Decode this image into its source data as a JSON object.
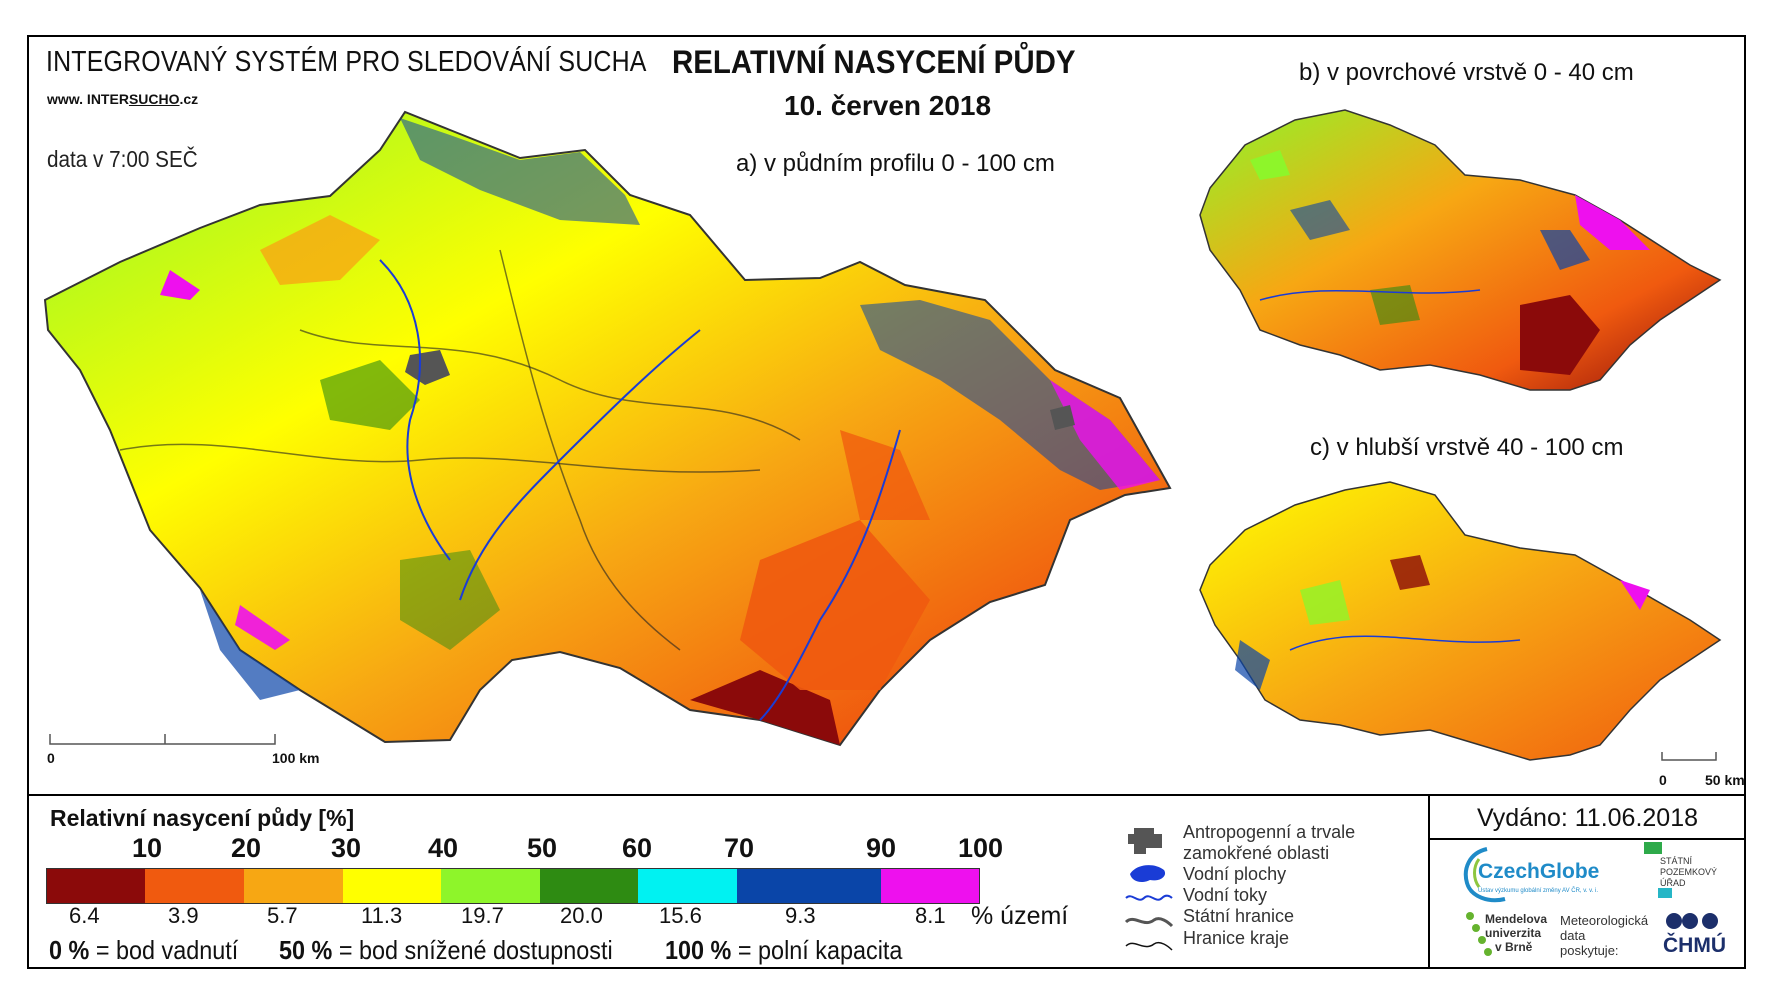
{
  "header": {
    "system_title": "INTEGROVANÝ SYSTÉM PRO SLEDOVÁNÍ SUCHA",
    "web_prefix": "www. INTER",
    "web_underlined": "SUCHO",
    "web_suffix": ".cz",
    "data_time": "data v 7:00 SEČ",
    "main_title": "RELATIVNÍ NASYCENÍ PŮDY",
    "date": "10. červen 2018"
  },
  "maps": {
    "a_label": "a) v půdním profilu 0 - 100 cm",
    "b_label": "b) v povrchové vrstvě 0 - 40 cm",
    "c_label": "c) v hlubší vrstvě 40 - 100 cm",
    "scale_main_start": "0",
    "scale_main_end": "100 km",
    "scale_small_start": "0",
    "scale_small_end": "50 km"
  },
  "legend": {
    "title": "Relativní nasycení půdy [%]",
    "ticks": [
      "10",
      "20",
      "30",
      "40",
      "50",
      "60",
      "70",
      "90",
      "100"
    ],
    "classes": [
      {
        "color": "#8b0a0a",
        "percent": "6.4"
      },
      {
        "color": "#f05a0f",
        "percent": "3.9"
      },
      {
        "color": "#f7a713",
        "percent": "5.7"
      },
      {
        "color": "#ffff00",
        "percent": "11.3"
      },
      {
        "color": "#8ef52a",
        "percent": "19.7"
      },
      {
        "color": "#2e8b12",
        "percent": "20.0"
      },
      {
        "color": "#00f2f2",
        "percent": "15.6"
      },
      {
        "color": "#0a45a8",
        "percent": "9.3"
      },
      {
        "color": "#ee10ee",
        "percent": "8.1"
      }
    ],
    "unit_label": "% území",
    "note1_bold": "0 %",
    "note1_text": "= bod vadnutí",
    "note2_bold": "50 %",
    "note2_text": "= bod snížené dostupnosti",
    "note3_bold": "100 %",
    "note3_text": "= polní kapacita"
  },
  "symbol_legend": {
    "anthropogenic_line1": "Antropogenní a trvale",
    "anthropogenic_line2": "zamokřené oblasti",
    "water_bodies": "Vodní plochy",
    "rivers": "Vodní toky",
    "state_border": "Státní hranice",
    "region_border": "Hranice kraje"
  },
  "footer": {
    "issued": "Vydáno: 11.06.2018",
    "czechglobe": "CzechGlobe",
    "czechglobe_sub": "Ústav výzkumu globální změny AV ČR, v. v. i.",
    "spu_line1": "STÁTNÍ",
    "spu_line2": "POZEMKOVÝ",
    "spu_line3": "ÚŘAD",
    "mendel_line1": "Mendelova",
    "mendel_line2": "univerzita",
    "mendel_line3": "v Brně",
    "chmu_line1": "Meteorologická",
    "chmu_line2": "data",
    "chmu_line3": "poskytuje:",
    "chmu_name": "ČHMÚ"
  },
  "colors": {
    "dark_red": "#8b0a0a",
    "orange": "#f05a0f",
    "light_orange": "#f7a713",
    "yellow": "#ffff00",
    "light_green": "#8ef52a",
    "dark_green": "#2e8b12",
    "cyan": "#00f2f2",
    "blue": "#0a45a8",
    "magenta": "#ee10ee"
  }
}
